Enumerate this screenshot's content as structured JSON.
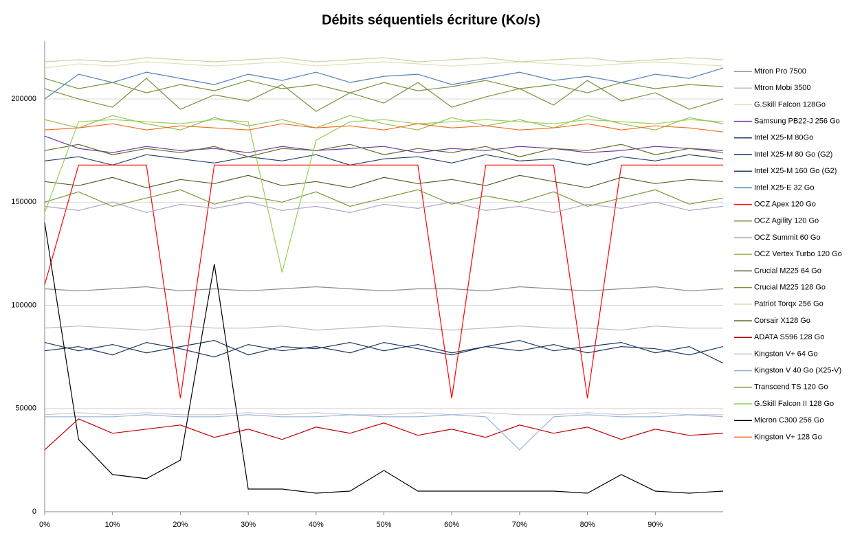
{
  "chart_data": {
    "type": "line",
    "title": "Débits séquentiels écriture (Ko/s)",
    "x": [
      0,
      5,
      10,
      15,
      20,
      25,
      30,
      35,
      40,
      45,
      50,
      55,
      60,
      65,
      70,
      75,
      80,
      85,
      90,
      95,
      100
    ],
    "xlim": [
      0,
      100
    ],
    "xticks": [
      {
        "value": 0,
        "label": "0%"
      },
      {
        "value": 10,
        "label": "10%"
      },
      {
        "value": 20,
        "label": "20%"
      },
      {
        "value": 30,
        "label": "30%"
      },
      {
        "value": 40,
        "label": "40%"
      },
      {
        "value": 50,
        "label": "50%"
      },
      {
        "value": 60,
        "label": "60%"
      },
      {
        "value": 70,
        "label": "70%"
      },
      {
        "value": 80,
        "label": "80%"
      },
      {
        "value": 90,
        "label": "90%"
      }
    ],
    "ylim": [
      0,
      228000
    ],
    "yticks": [
      0,
      50000,
      100000,
      150000,
      200000
    ],
    "grid": true,
    "series": [
      {
        "name": "Mtron Pro 7500",
        "color": "#8c8c8c",
        "values": [
          108000,
          107000,
          108000,
          109000,
          107000,
          108000,
          107000,
          108000,
          109000,
          108000,
          107000,
          108000,
          108000,
          107000,
          109000,
          108000,
          107000,
          108000,
          109000,
          107000,
          108000
        ]
      },
      {
        "name": "Mtron Mobi 3500",
        "color": "#bfbfbf",
        "values": [
          89000,
          90000,
          89000,
          88000,
          90000,
          89000,
          89000,
          90000,
          88000,
          89000,
          90000,
          89000,
          88000,
          89000,
          90000,
          89000,
          89000,
          88000,
          90000,
          89000,
          89000
        ]
      },
      {
        "name": "G.Skill Falcon 128Go",
        "color": "#d8e4bc",
        "values": [
          215000,
          217000,
          216000,
          218000,
          217000,
          216000,
          217000,
          218000,
          216000,
          217000,
          218000,
          217000,
          216000,
          217000,
          218000,
          217000,
          216000,
          217000,
          218000,
          217000,
          216000
        ]
      },
      {
        "name": "Samsung PB22-J 256 Go",
        "color": "#7030a0",
        "values": [
          182000,
          176000,
          174000,
          177000,
          175000,
          176000,
          174000,
          177000,
          175000,
          176000,
          177000,
          174000,
          176000,
          175000,
          177000,
          176000,
          174000,
          175000,
          177000,
          176000,
          175000
        ]
      },
      {
        "name": "Intel X25-M 80Go",
        "color": "#1f3864",
        "values": [
          78000,
          80000,
          76000,
          82000,
          79000,
          75000,
          81000,
          78000,
          80000,
          77000,
          82000,
          79000,
          76000,
          80000,
          78000,
          81000,
          77000,
          80000,
          79000,
          76000,
          80000
        ]
      },
      {
        "name": "Intel X25-M 80 Go (G2)",
        "color": "#17375e",
        "values": [
          82000,
          78000,
          81000,
          77000,
          80000,
          83000,
          76000,
          80000,
          79000,
          82000,
          78000,
          81000,
          77000,
          80000,
          83000,
          78000,
          80000,
          82000,
          77000,
          80000,
          72000
        ]
      },
      {
        "name": "Intel X25-M 160 Go (G2)",
        "color": "#254061",
        "values": [
          170000,
          172000,
          168000,
          173000,
          171000,
          169000,
          172000,
          170000,
          173000,
          168000,
          171000,
          172000,
          169000,
          173000,
          170000,
          171000,
          168000,
          172000,
          170000,
          173000,
          171000
        ]
      },
      {
        "name": "Intel X25-E 32 Go",
        "color": "#4f81bd",
        "values": [
          200000,
          212000,
          208000,
          213000,
          210000,
          207000,
          212000,
          209000,
          213000,
          208000,
          211000,
          212000,
          207000,
          210000,
          213000,
          209000,
          211000,
          208000,
          212000,
          210000,
          215000
        ]
      },
      {
        "name": "OCZ Apex 120 Go",
        "color": "#ff0000",
        "values": [
          110000,
          168000,
          168000,
          168000,
          55000,
          168000,
          168000,
          168000,
          168000,
          168000,
          168000,
          168000,
          55000,
          168000,
          168000,
          168000,
          55000,
          168000,
          168000,
          168000,
          168000
        ]
      },
      {
        "name": "OCZ Agility 120 Go",
        "color": "#77933c",
        "values": [
          205000,
          200000,
          196000,
          210000,
          195000,
          202000,
          199000,
          207000,
          194000,
          203000,
          198000,
          208000,
          196000,
          201000,
          205000,
          197000,
          209000,
          199000,
          203000,
          195000,
          200000
        ]
      },
      {
        "name": "OCZ Summit  60 Go",
        "color": "#b3a2c7",
        "values": [
          148000,
          146000,
          150000,
          145000,
          149000,
          147000,
          150000,
          146000,
          148000,
          145000,
          149000,
          147000,
          150000,
          146000,
          148000,
          145000,
          149000,
          147000,
          150000,
          146000,
          148000
        ]
      },
      {
        "name": "OCZ Vertex Turbo 120 Go",
        "color": "#9bbb59",
        "values": [
          190000,
          186000,
          192000,
          188000,
          185000,
          191000,
          187000,
          190000,
          186000,
          192000,
          188000,
          185000,
          191000,
          187000,
          190000,
          186000,
          192000,
          188000,
          185000,
          191000,
          188000
        ]
      },
      {
        "name": "Crucial M225 64 Go",
        "color": "#4f6228",
        "values": [
          160000,
          158000,
          162000,
          157000,
          161000,
          159000,
          163000,
          158000,
          160000,
          157000,
          162000,
          159000,
          161000,
          158000,
          163000,
          160000,
          157000,
          162000,
          159000,
          161000,
          160000
        ]
      },
      {
        "name": "Crucial M225 128 Go",
        "color": "#76923c",
        "values": [
          210000,
          205000,
          208000,
          203000,
          207000,
          204000,
          209000,
          205000,
          207000,
          203000,
          208000,
          204000,
          206000,
          209000,
          205000,
          207000,
          203000,
          208000,
          205000,
          207000,
          206000
        ]
      },
      {
        "name": "Patriot Torqx 256 Go",
        "color": "#c4d79b",
        "values": [
          218000,
          219000,
          218000,
          220000,
          219000,
          218000,
          219000,
          220000,
          218000,
          219000,
          220000,
          218000,
          219000,
          220000,
          218000,
          219000,
          220000,
          218000,
          219000,
          220000,
          219000
        ]
      },
      {
        "name": "Corsair X128 Go",
        "color": "#5a6e2a",
        "values": [
          175000,
          178000,
          173000,
          176000,
          174000,
          177000,
          172000,
          176000,
          175000,
          178000,
          173000,
          176000,
          174000,
          177000,
          172000,
          176000,
          175000,
          178000,
          173000,
          176000,
          174000
        ]
      },
      {
        "name": "ADATA S596 128 Go",
        "color": "#c00000",
        "values": [
          30000,
          45000,
          38000,
          40000,
          42000,
          36000,
          40000,
          35000,
          41000,
          38000,
          43000,
          37000,
          40000,
          36000,
          42000,
          38000,
          41000,
          35000,
          40000,
          37000,
          38000
        ]
      },
      {
        "name": "Kingston V+ 64 Go",
        "color": "#ccc0da",
        "values": [
          47000,
          48000,
          47000,
          48000,
          47000,
          47000,
          48000,
          47000,
          48000,
          47000,
          47000,
          48000,
          47000,
          48000,
          47000,
          47000,
          48000,
          47000,
          48000,
          47000,
          47000
        ]
      },
      {
        "name": "Kingston V 40 Go (X25-V)",
        "color": "#95b3d7",
        "values": [
          46000,
          46000,
          46000,
          47000,
          46000,
          46000,
          47000,
          46000,
          46000,
          47000,
          46000,
          46000,
          47000,
          46000,
          30000,
          46000,
          47000,
          46000,
          46000,
          47000,
          46000
        ]
      },
      {
        "name": "Transcend TS 120 Go",
        "color": "#7a9a3a",
        "values": [
          150000,
          155000,
          148000,
          152000,
          156000,
          149000,
          153000,
          150000,
          155000,
          148000,
          152000,
          156000,
          149000,
          153000,
          150000,
          155000,
          148000,
          152000,
          156000,
          149000,
          152000
        ]
      },
      {
        "name": "G.Skill Falcon II 128 Go",
        "color": "#92d050",
        "values": [
          145000,
          189000,
          190000,
          189000,
          188000,
          190000,
          189000,
          116000,
          180000,
          189000,
          190000,
          188000,
          189000,
          190000,
          189000,
          188000,
          190000,
          189000,
          188000,
          190000,
          189000
        ]
      },
      {
        "name": "Micron C300 256 Go",
        "color": "#000000",
        "values": [
          140000,
          35000,
          18000,
          16000,
          25000,
          120000,
          11000,
          11000,
          9000,
          10000,
          20000,
          10000,
          10000,
          10000,
          10000,
          10000,
          9000,
          18000,
          10000,
          9000,
          10000
        ]
      },
      {
        "name": "Kingston V+ 128 Go",
        "color": "#f26b1d",
        "values": [
          185000,
          186000,
          188000,
          185000,
          187000,
          186000,
          185000,
          188000,
          186000,
          187000,
          185000,
          188000,
          186000,
          187000,
          185000,
          186000,
          188000,
          185000,
          187000,
          186000,
          184000
        ]
      }
    ]
  }
}
